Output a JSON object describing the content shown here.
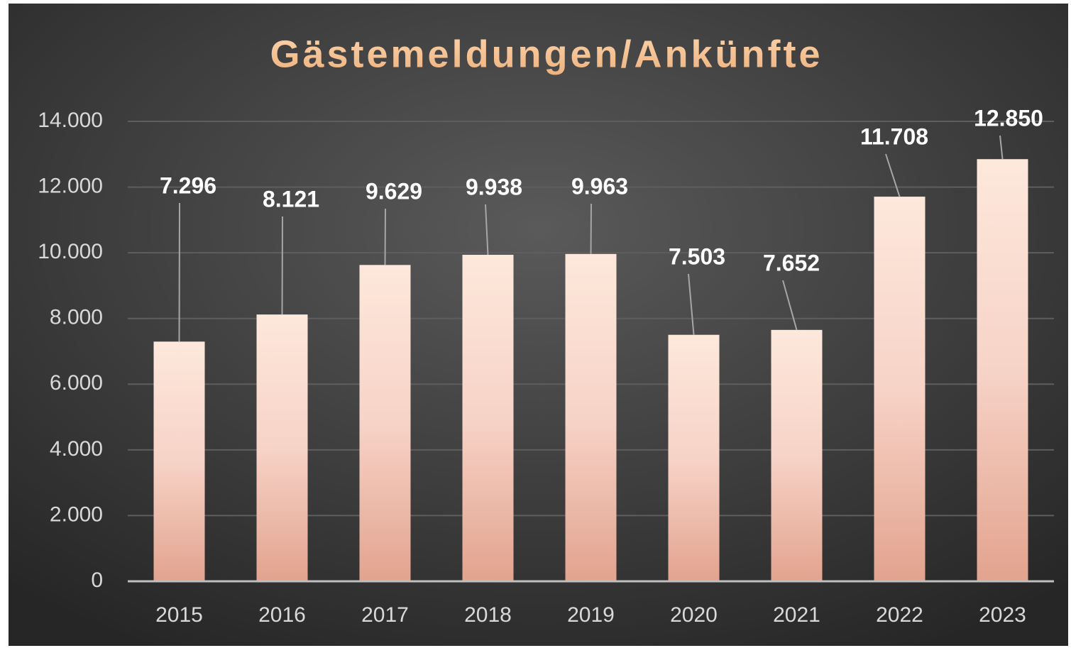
{
  "chart_data": {
    "type": "bar",
    "title": "Gästemeldungen/Ankünfte",
    "categories": [
      "2015",
      "2016",
      "2017",
      "2018",
      "2019",
      "2020",
      "2021",
      "2022",
      "2023"
    ],
    "values": [
      7296,
      8121,
      9629,
      9938,
      9963,
      7503,
      7652,
      11708,
      12850
    ],
    "value_labels": [
      "7.296",
      "8.121",
      "9.629",
      "9.938",
      "9.963",
      "7.503",
      "7.652",
      "11.708",
      "12.850"
    ],
    "color": "#f2c6b4",
    "ylim": [
      0,
      14000
    ],
    "yticks": [
      0,
      {
        "value": 2000,
        "label": "2.000"
      },
      {
        "value": 4000,
        "label": "4.000"
      },
      {
        "value": 6000,
        "label": "6.000"
      },
      {
        "value": 8000,
        "label": "8.000"
      },
      {
        "value": 10000,
        "label": "10.000"
      },
      {
        "value": 12000,
        "label": "12.000"
      },
      {
        "value": 14000,
        "label": "14.000"
      }
    ],
    "grid": true
  }
}
